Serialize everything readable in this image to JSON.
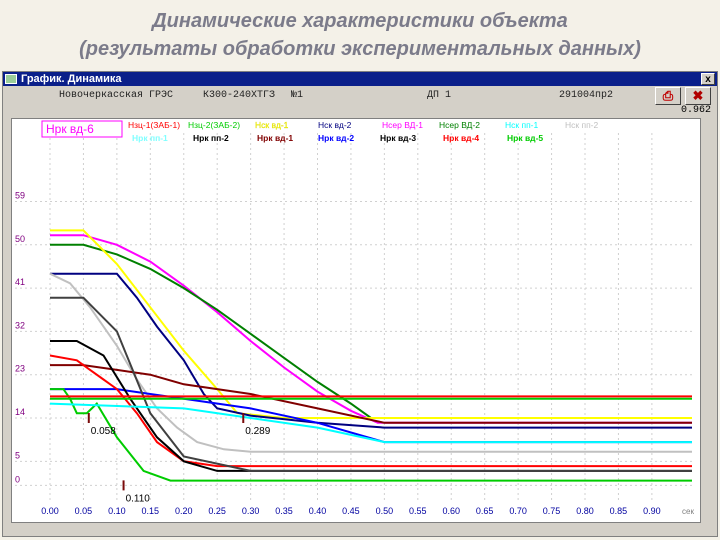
{
  "slide": {
    "title_line1": "Динамические характеристики объекта",
    "title_line2": "(результаты обработки экспериментальных данных)"
  },
  "window": {
    "title": "График. Динамика",
    "close_glyph": "x",
    "icon": "chart-window-icon"
  },
  "infobar": {
    "station": "Новочеркасская ГРЭС",
    "unit": "К300-240ХТГЗ",
    "num": "№1",
    "device": "ДП 1",
    "file": "291004пр2"
  },
  "toolbar": {
    "print_glyph": "⎙",
    "close_glyph": "✖",
    "scale_value": "0.962"
  },
  "chart_data": {
    "type": "line",
    "xlabel": "сек",
    "x_ticks": [
      "0.00",
      "0.05",
      "0.10",
      "0.15",
      "0.20",
      "0.25",
      "0.30",
      "0.35",
      "0.40",
      "0.45",
      "0.50",
      "0.55",
      "0.60",
      "0.65",
      "0.70",
      "0.75",
      "0.80",
      "0.85",
      "0.90"
    ],
    "y_ticks": [
      "59",
      "50",
      "41",
      "32",
      "23",
      "14",
      "5",
      "0"
    ],
    "y_tick_values": [
      59,
      50,
      41,
      32,
      23,
      14,
      5,
      0
    ],
    "xlim": [
      0,
      0.96
    ],
    "ylim": [
      -2,
      67
    ],
    "highlight_label": "Нрк вд-6",
    "annotations": [
      {
        "x": 0.058,
        "y": 14,
        "text": "0.058",
        "color": "#7a0a0a"
      },
      {
        "x": 0.289,
        "y": 14,
        "text": "0.289",
        "color": "#7a0a0a"
      },
      {
        "x": 0.11,
        "y": 0,
        "text": "0.110",
        "color": "#7a0a0a"
      }
    ],
    "legend_row1": [
      {
        "name": "Нзц-1(ЗАБ-1)",
        "color": "#ff0000"
      },
      {
        "name": "Нзц-2(ЗАБ-2)",
        "color": "#00cc00"
      },
      {
        "name": "Нск вд-1",
        "color": "#ffff00"
      },
      {
        "name": "Нск вд-2",
        "color": "#000080"
      },
      {
        "name": "Нсер ВД-1",
        "color": "#ff00ff"
      },
      {
        "name": "Нсер ВД-2",
        "color": "#008000"
      },
      {
        "name": "Нск пп-1",
        "color": "#00ffff"
      },
      {
        "name": "Нск пп-2",
        "color": "#c0c0c0"
      }
    ],
    "legend_row2": [
      {
        "name": "Нрк пп-1",
        "color": "#80ffff"
      },
      {
        "name": "Нрк пп-2",
        "color": "#000000"
      },
      {
        "name": "Нрк вд-1",
        "color": "#800000"
      },
      {
        "name": "Нрк вд-2",
        "color": "#0000ff"
      },
      {
        "name": "Нрк вд-3",
        "color": "#000000"
      },
      {
        "name": "Нрк вд-4",
        "color": "#ff0000"
      },
      {
        "name": "Нрк вд-5",
        "color": "#00cc00"
      }
    ],
    "series": [
      {
        "name": "Нсер ВД-1",
        "color": "#ff00ff",
        "x": [
          0,
          0.05,
          0.1,
          0.15,
          0.2,
          0.25,
          0.3,
          0.35,
          0.4,
          0.45,
          0.49,
          0.55,
          0.96
        ],
        "y": [
          52,
          52,
          50,
          46.5,
          41.5,
          36,
          30,
          24.5,
          19.5,
          15.5,
          13,
          13,
          13
        ]
      },
      {
        "name": "Нсер ВД-2",
        "color": "#008000",
        "x": [
          0,
          0.05,
          0.1,
          0.15,
          0.2,
          0.25,
          0.3,
          0.35,
          0.4,
          0.45,
          0.48,
          0.55,
          0.96
        ],
        "y": [
          50,
          50,
          48,
          45,
          41,
          36.5,
          31.5,
          26.5,
          21.5,
          17,
          14,
          14,
          14
        ]
      },
      {
        "name": "Нск вд-1",
        "color": "#ffff00",
        "x": [
          0,
          0.05,
          0.1,
          0.15,
          0.2,
          0.25,
          0.28,
          0.35,
          0.96
        ],
        "y": [
          53,
          53,
          46,
          37,
          28,
          20,
          15,
          14,
          14
        ]
      },
      {
        "name": "Нск вд-2",
        "color": "#000080",
        "x": [
          0,
          0.1,
          0.13,
          0.16,
          0.2,
          0.23,
          0.25,
          0.3,
          0.4,
          0.5,
          0.96
        ],
        "y": [
          44,
          44,
          39,
          33,
          26,
          19,
          16,
          14.5,
          13,
          12,
          12
        ]
      },
      {
        "name": "Нск пп-2",
        "color": "#c0c0c0",
        "x": [
          0,
          0.03,
          0.06,
          0.1,
          0.13,
          0.16,
          0.19,
          0.22,
          0.26,
          0.3,
          0.96
        ],
        "y": [
          44,
          42,
          37,
          29,
          22,
          16,
          12,
          9,
          7.5,
          7,
          7
        ]
      },
      {
        "name": "Нрк вд-1",
        "color": "#800000",
        "x": [
          0,
          0.05,
          0.1,
          0.15,
          0.2,
          0.3,
          0.4,
          0.5,
          0.96
        ],
        "y": [
          25,
          25,
          24,
          23,
          21,
          19,
          16,
          13,
          13
        ]
      },
      {
        "name": "Нрк вд-2",
        "color": "#0000ff",
        "x": [
          0,
          0.05,
          0.1,
          0.15,
          0.2,
          0.3,
          0.4,
          0.5,
          0.96
        ],
        "y": [
          20,
          20,
          20,
          19,
          18,
          16,
          13,
          9,
          9
        ]
      },
      {
        "name": "Нзц-1(ЗАБ-1)",
        "color": "#ff0000",
        "x": [
          0,
          0.04,
          0.06,
          0.08,
          0.1,
          0.13,
          0.16,
          0.2,
          0.25,
          0.96
        ],
        "y": [
          27,
          26,
          24,
          22,
          20,
          15,
          9,
          5,
          4,
          4
        ]
      },
      {
        "name": "Нрк вд-5",
        "color": "#00cc00",
        "x": [
          0,
          0.02,
          0.03,
          0.04,
          0.055,
          0.07,
          0.1,
          0.14,
          0.18,
          0.22,
          0.96
        ],
        "y": [
          20,
          20,
          18,
          15,
          15,
          17,
          10,
          3,
          1,
          1,
          1
        ]
      },
      {
        "name": "Нрк пп-2",
        "color": "#000000",
        "x": [
          0,
          0.04,
          0.08,
          0.12,
          0.16,
          0.2,
          0.25,
          0.96
        ],
        "y": [
          30,
          30,
          27,
          18,
          10,
          5,
          3,
          3
        ]
      },
      {
        "name": "Нрк вд-3",
        "color": "#404040",
        "x": [
          0,
          0.05,
          0.1,
          0.15,
          0.2,
          0.3,
          0.96
        ],
        "y": [
          39,
          39,
          32,
          15,
          6,
          3,
          3
        ]
      },
      {
        "name": "Нзц-2(ЗАБ-2)",
        "color": "#00cc00",
        "x": [
          0,
          0.96
        ],
        "y": [
          18,
          18
        ]
      },
      {
        "name": "Нск пп-1",
        "color": "#00ffff",
        "x": [
          0,
          0.2,
          0.3,
          0.4,
          0.5,
          0.96
        ],
        "y": [
          17,
          16,
          14,
          12,
          9,
          9
        ]
      },
      {
        "name": "Нрк вд-4",
        "color": "#ff0000",
        "x": [
          0,
          0.96
        ],
        "y": [
          18.5,
          18.5
        ]
      }
    ]
  }
}
